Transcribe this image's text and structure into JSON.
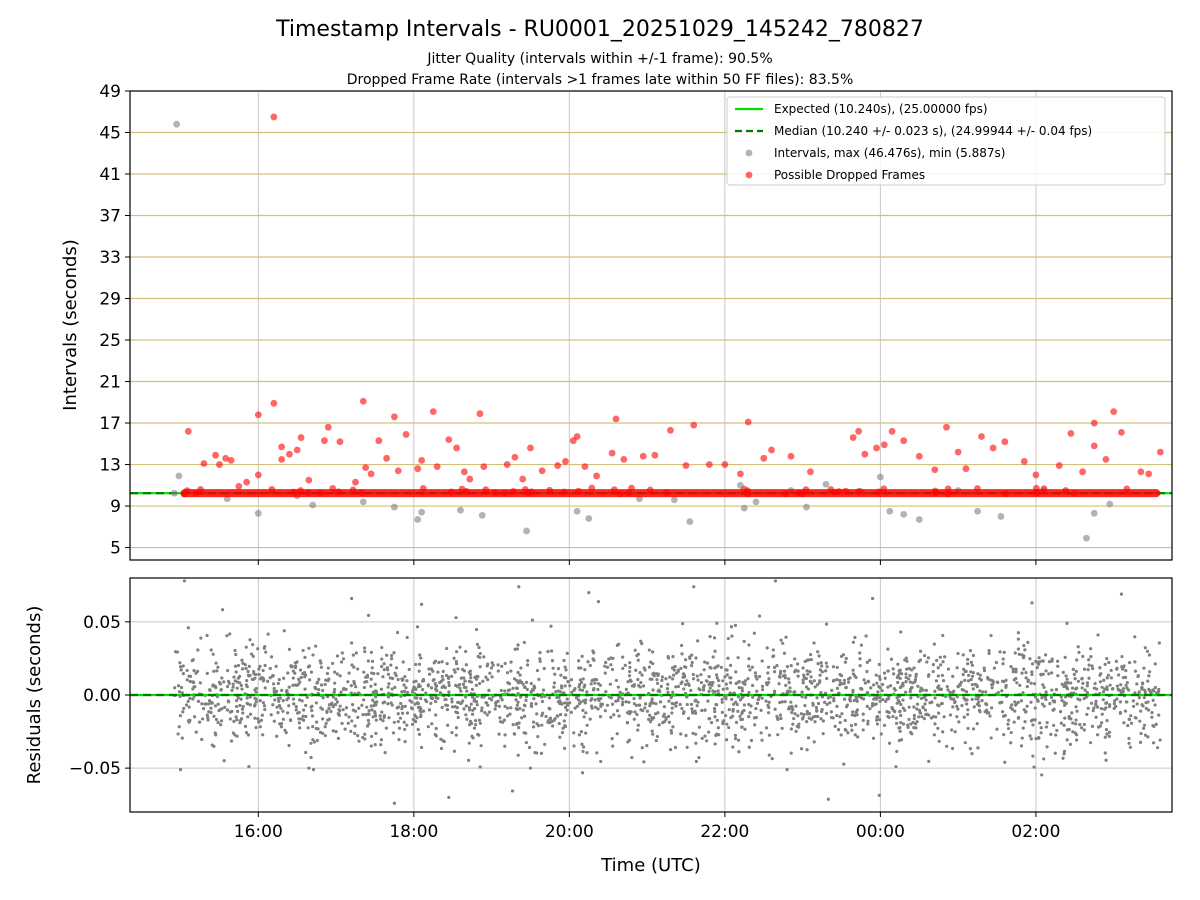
{
  "figure": {
    "title": "Timestamp Intervals - RU0001_20251029_145242_780827",
    "subtitle_1": "Jitter Quality (intervals within +/-1 frame): 90.5%",
    "subtitle_2": "Dropped Frame Rate (intervals >1 frames late within 50 FF files): 83.5%"
  },
  "chart_data": [
    {
      "type": "scatter",
      "panel": "intervals",
      "ylabel": "Intervals (seconds)",
      "ylim": [
        3.8,
        49
      ],
      "yticks": [
        "5",
        "9",
        "13",
        "17",
        "21",
        "25",
        "29",
        "33",
        "37",
        "41",
        "45",
        "49"
      ],
      "ytick_values": [
        5,
        9,
        13,
        17,
        21,
        25,
        29,
        33,
        37,
        41,
        45,
        49
      ],
      "hgrid_color": "#d4c07a",
      "vgrid": true,
      "legend_position": "top-right",
      "legend": [
        {
          "label": "Expected (10.240s), (25.00000 fps)",
          "kind": "line",
          "color": "#00e000"
        },
        {
          "label": "Median (10.240 +/- 0.023 s), (24.99944 +/- 0.04 fps)",
          "kind": "dashed",
          "color": "#007a00"
        },
        {
          "label": "Intervals, max (46.476s), min (5.887s)",
          "kind": "marker",
          "color": "#808080"
        },
        {
          "label": "Possible Dropped Frames",
          "kind": "marker",
          "color": "#ff0000"
        }
      ],
      "expected": 10.24,
      "median": 10.24,
      "series": [
        {
          "name": "Intervals, max (46.476s), min (5.887s)",
          "color": "#808080",
          "points": [
            [
              14.92,
              10.24
            ],
            [
              14.95,
              45.8
            ],
            [
              14.98,
              11.9
            ],
            [
              15.6,
              9.7
            ],
            [
              16.0,
              8.3
            ],
            [
              16.5,
              10.0
            ],
            [
              16.7,
              9.1
            ],
            [
              17.35,
              9.4
            ],
            [
              17.75,
              8.9
            ],
            [
              18.05,
              7.7
            ],
            [
              18.1,
              8.4
            ],
            [
              18.6,
              8.6
            ],
            [
              18.88,
              8.1
            ],
            [
              19.45,
              6.6
            ],
            [
              20.1,
              8.5
            ],
            [
              20.25,
              7.8
            ],
            [
              20.9,
              9.7
            ],
            [
              21.35,
              9.6
            ],
            [
              21.55,
              7.5
            ],
            [
              22.2,
              11.0
            ],
            [
              22.25,
              8.8
            ],
            [
              22.4,
              9.4
            ],
            [
              22.85,
              10.5
            ],
            [
              23.05,
              8.9
            ],
            [
              23.3,
              11.1
            ],
            [
              23.75,
              10.4
            ],
            [
              24.0,
              11.8
            ],
            [
              24.12,
              8.5
            ],
            [
              24.3,
              8.2
            ],
            [
              24.5,
              7.7
            ],
            [
              25.0,
              10.5
            ],
            [
              25.25,
              8.5
            ],
            [
              25.55,
              8.0
            ],
            [
              26.1,
              10.5
            ],
            [
              26.65,
              5.9
            ],
            [
              26.75,
              8.3
            ],
            [
              26.95,
              9.2
            ]
          ]
        },
        {
          "name": "Possible Dropped Frames",
          "color": "#ff0000",
          "baseline": {
            "x0": 15.0,
            "x1": 27.6,
            "y": 10.24
          },
          "points": [
            [
              15.1,
              16.2
            ],
            [
              15.3,
              13.1
            ],
            [
              15.45,
              13.9
            ],
            [
              15.5,
              13.0
            ],
            [
              15.58,
              13.6
            ],
            [
              15.65,
              13.4
            ],
            [
              15.75,
              10.9
            ],
            [
              15.85,
              11.3
            ],
            [
              16.0,
              17.8
            ],
            [
              16.0,
              12.0
            ],
            [
              16.2,
              18.9
            ],
            [
              16.3,
              13.5
            ],
            [
              16.3,
              14.7
            ],
            [
              16.4,
              14.0
            ],
            [
              16.5,
              14.4
            ],
            [
              16.55,
              15.6
            ],
            [
              16.65,
              11.5
            ],
            [
              16.85,
              15.3
            ],
            [
              16.9,
              16.6
            ],
            [
              17.05,
              15.2
            ],
            [
              17.25,
              11.3
            ],
            [
              17.35,
              19.1
            ],
            [
              17.38,
              12.7
            ],
            [
              17.45,
              12.1
            ],
            [
              17.55,
              15.3
            ],
            [
              17.65,
              13.6
            ],
            [
              17.75,
              17.6
            ],
            [
              17.8,
              12.4
            ],
            [
              17.9,
              15.9
            ],
            [
              18.05,
              12.6
            ],
            [
              18.1,
              13.4
            ],
            [
              18.25,
              18.1
            ],
            [
              18.3,
              12.8
            ],
            [
              18.45,
              15.4
            ],
            [
              18.55,
              14.6
            ],
            [
              18.65,
              12.3
            ],
            [
              18.72,
              11.6
            ],
            [
              18.85,
              17.9
            ],
            [
              18.9,
              12.8
            ],
            [
              19.2,
              13.0
            ],
            [
              19.3,
              13.7
            ],
            [
              19.4,
              11.6
            ],
            [
              19.5,
              14.6
            ],
            [
              19.65,
              12.4
            ],
            [
              19.85,
              12.9
            ],
            [
              19.95,
              13.3
            ],
            [
              20.05,
              15.3
            ],
            [
              20.1,
              15.7
            ],
            [
              20.2,
              12.8
            ],
            [
              20.35,
              11.9
            ],
            [
              20.55,
              14.1
            ],
            [
              20.6,
              17.4
            ],
            [
              20.7,
              13.5
            ],
            [
              20.95,
              13.8
            ],
            [
              21.1,
              13.9
            ],
            [
              21.3,
              16.3
            ],
            [
              21.5,
              12.9
            ],
            [
              21.6,
              16.8
            ],
            [
              21.8,
              13.0
            ],
            [
              22.0,
              13.0
            ],
            [
              22.2,
              12.1
            ],
            [
              22.3,
              17.1
            ],
            [
              22.5,
              13.6
            ],
            [
              22.6,
              14.4
            ],
            [
              22.85,
              13.8
            ],
            [
              23.1,
              12.3
            ],
            [
              23.65,
              15.6
            ],
            [
              23.72,
              16.2
            ],
            [
              23.8,
              14.0
            ],
            [
              23.95,
              14.6
            ],
            [
              24.05,
              14.9
            ],
            [
              24.15,
              16.2
            ],
            [
              24.3,
              15.3
            ],
            [
              24.5,
              13.8
            ],
            [
              24.7,
              12.5
            ],
            [
              24.85,
              16.6
            ],
            [
              25.0,
              14.2
            ],
            [
              25.1,
              12.6
            ],
            [
              25.3,
              15.7
            ],
            [
              25.45,
              14.6
            ],
            [
              25.6,
              15.2
            ],
            [
              25.85,
              13.3
            ],
            [
              26.0,
              12.0
            ],
            [
              26.3,
              12.9
            ],
            [
              26.45,
              16.0
            ],
            [
              26.6,
              12.3
            ],
            [
              26.75,
              17.0
            ],
            [
              26.75,
              14.8
            ],
            [
              26.9,
              13.5
            ],
            [
              27.0,
              18.1
            ],
            [
              27.1,
              16.1
            ],
            [
              27.35,
              12.3
            ],
            [
              27.45,
              12.1
            ],
            [
              27.6,
              14.2
            ],
            [
              16.2,
              46.5
            ]
          ]
        }
      ]
    },
    {
      "type": "scatter",
      "panel": "residuals",
      "ylabel": "Residuals (seconds)",
      "xlabel": "Time (UTC)",
      "xlim": [
        14.35,
        27.75
      ],
      "xticks": [
        "16:00",
        "18:00",
        "20:00",
        "22:00",
        "00:00",
        "02:00"
      ],
      "xtick_values": [
        16,
        18,
        20,
        22,
        24,
        26
      ],
      "ylim": [
        -0.08,
        0.08
      ],
      "yticks": [
        "0.05",
        "0.00",
        "−0.05"
      ],
      "ytick_values": [
        0.05,
        0.0,
        -0.05
      ],
      "grid": true,
      "zero_line_color": "#00e000",
      "series": [
        {
          "name": "Residuals",
          "color": "#808080",
          "x_range": [
            14.92,
            27.6
          ],
          "count": 2600,
          "std": 0.017,
          "outliers": [
            [
              15.0,
              -0.051
            ],
            [
              15.1,
              0.046
            ],
            [
              16.65,
              -0.05
            ],
            [
              17.75,
              -0.074
            ],
            [
              18.45,
              -0.07
            ],
            [
              18.1,
              0.062
            ],
            [
              19.35,
              0.074
            ],
            [
              19.5,
              -0.05
            ],
            [
              20.25,
              0.07
            ],
            [
              21.6,
              0.074
            ],
            [
              22.65,
              0.078
            ],
            [
              22.8,
              -0.051
            ],
            [
              23.9,
              0.066
            ],
            [
              24.2,
              -0.049
            ],
            [
              25.6,
              -0.046
            ],
            [
              25.95,
              0.063
            ],
            [
              26.4,
              0.049
            ],
            [
              27.1,
              0.069
            ],
            [
              15.05,
              0.078
            ],
            [
              17.2,
              0.066
            ]
          ]
        }
      ]
    }
  ]
}
